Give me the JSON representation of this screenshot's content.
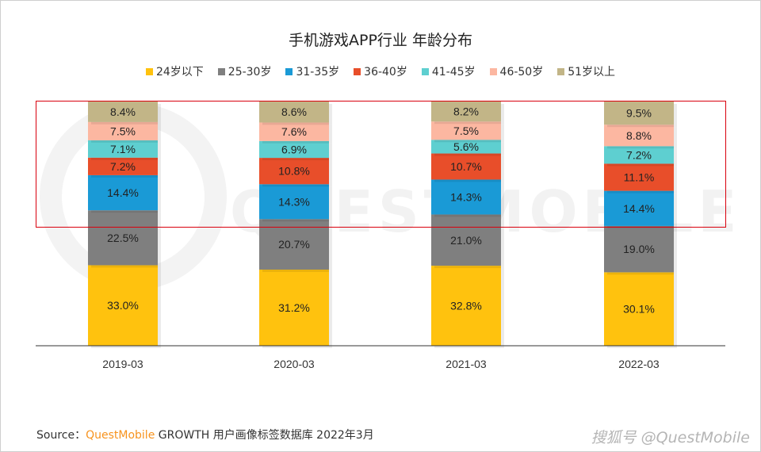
{
  "chart_data": {
    "type": "bar",
    "stacked": true,
    "title": "手机游戏APP行业 年龄分布",
    "categories": [
      "2019-03",
      "2020-03",
      "2021-03",
      "2022-03"
    ],
    "series": [
      {
        "name": "24岁以下",
        "color": "#ffc20e",
        "values": [
          33.0,
          31.2,
          32.8,
          30.1
        ]
      },
      {
        "name": "25-30岁",
        "color": "#7f7f7f",
        "values": [
          22.5,
          20.7,
          21.0,
          19.0
        ]
      },
      {
        "name": "31-35岁",
        "color": "#1a9ad6",
        "values": [
          14.4,
          14.3,
          14.3,
          14.4
        ]
      },
      {
        "name": "36-40岁",
        "color": "#e84e2a",
        "values": [
          7.2,
          10.8,
          10.7,
          11.1
        ]
      },
      {
        "name": "41-45岁",
        "color": "#5ecfd0",
        "values": [
          7.1,
          6.9,
          5.6,
          7.2
        ]
      },
      {
        "name": "46-50岁",
        "color": "#fcb7a1",
        "values": [
          7.5,
          7.6,
          7.5,
          8.8
        ]
      },
      {
        "name": "51岁以上",
        "color": "#c2b587",
        "values": [
          8.4,
          8.6,
          8.2,
          9.5
        ]
      }
    ],
    "data_label_suffix": "%",
    "legend": "top",
    "ylim": [
      0,
      100
    ],
    "grid": false
  },
  "footer": {
    "source_label": "Source：",
    "brand": "QuestMobile",
    "text": "GROWTH 用户画像标签数据库 2022年3月"
  },
  "watermark": {
    "text": "搜狐号 @QuestMobile",
    "background": "QUESTMOBILE"
  },
  "highlight_color": "#d9000d"
}
